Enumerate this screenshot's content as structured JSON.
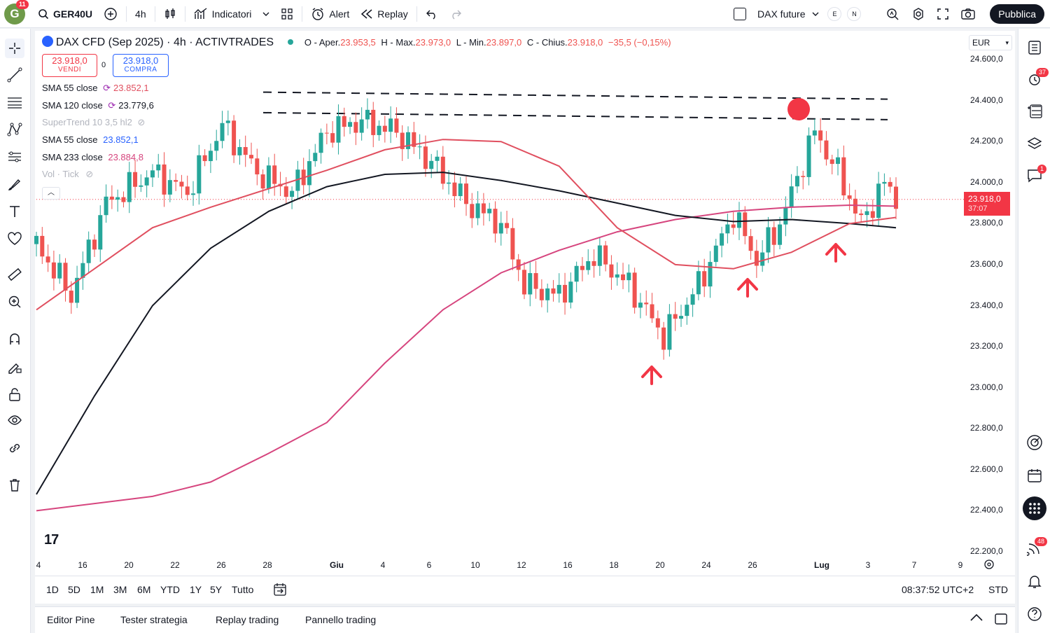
{
  "toolbar": {
    "avatar_letter": "G",
    "avatar_badge": "11",
    "symbol": "GER40U",
    "interval": "4h",
    "indicators": "Indicatori",
    "alert": "Alert",
    "replay": "Replay",
    "compare_symbol": "DAX future",
    "e_label": "E",
    "n_label": "N",
    "publish": "Pubblica"
  },
  "legend": {
    "title": "DAX CFD (Sep 2025) · 4h · ACTIVTRADES",
    "o_label": "O - Aper.",
    "o_val": "23.953,5",
    "h_label": "H - Max.",
    "h_val": "23.973,0",
    "l_label": "L - Min.",
    "l_val": "23.897,0",
    "c_label": "C - Chius.",
    "c_val": "23.918,0",
    "change": "−35,5 (−0,15%)",
    "sell_price": "23.918,0",
    "sell_label": "VENDI",
    "spread": "0",
    "buy_price": "23.918,0",
    "buy_label": "COMPRA"
  },
  "indicators": [
    {
      "name": "SMA 55 close",
      "value": "23.852,1",
      "color": "#e04f5f"
    },
    {
      "name": "SMA 120 close",
      "value": "23.779,6",
      "color": "#131722"
    },
    {
      "name": "SuperTrend 10 3,5 hl2",
      "value": "",
      "color": "#b2b5be"
    },
    {
      "name": "SMA 55 close",
      "value": "23.852,1",
      "color": "#2962ff"
    },
    {
      "name": "SMA 233 close",
      "value": "23.884,8",
      "color": "#d6457e"
    },
    {
      "name": "Vol · Tick",
      "value": "",
      "color": "#b2b5be"
    }
  ],
  "currency": "EUR",
  "price_label": {
    "value": "23.918,0",
    "countdown": "37:07"
  },
  "y_axis": [
    "24.600,0",
    "24.400,0",
    "24.200,0",
    "24.000,0",
    "23.800,0",
    "23.600,0",
    "23.400,0",
    "23.200,0",
    "23.000,0",
    "22.800,0",
    "22.600,0",
    "22.400,0",
    "22.200,0"
  ],
  "x_axis": [
    "4",
    "16",
    "20",
    "22",
    "26",
    "28",
    "Giu",
    "4",
    "6",
    "10",
    "12",
    "16",
    "18",
    "20",
    "24",
    "26",
    "Lug",
    "3",
    "7",
    "9"
  ],
  "ranges": [
    "1D",
    "5D",
    "1M",
    "3M",
    "6M",
    "YTD",
    "1Y",
    "5Y",
    "Tutto"
  ],
  "clock": "08:37:52 UTC+2",
  "session": "STD",
  "bottom_tabs": [
    "Editor Pine",
    "Tester strategia",
    "Replay trading",
    "Pannello trading"
  ],
  "right_badges": {
    "alerts": "37",
    "chat": "1",
    "notifications": "48"
  },
  "colors": {
    "up": "#26a69a",
    "down": "#ef5350",
    "sma55": "#e04f5f",
    "sma120": "#131722",
    "sma233": "#d6457e",
    "arrow": "#f23645"
  },
  "chart_data": {
    "type": "candlestick",
    "title": "DAX CFD (Sep 2025) · 4h · ACTIVTRADES",
    "ylim": [
      22200,
      24600
    ],
    "last_price": 23918,
    "resistance_levels": [
      24400,
      24300
    ],
    "sma55": [
      [
        0,
        23380
      ],
      [
        5,
        23580
      ],
      [
        10,
        23780
      ],
      [
        15,
        23880
      ],
      [
        20,
        23970
      ],
      [
        25,
        24060
      ],
      [
        30,
        24160
      ],
      [
        35,
        24210
      ],
      [
        40,
        24200
      ],
      [
        45,
        24080
      ],
      [
        50,
        23780
      ],
      [
        55,
        23600
      ],
      [
        60,
        23580
      ],
      [
        65,
        23660
      ],
      [
        70,
        23800
      ],
      [
        74,
        23830
      ]
    ],
    "sma120": [
      [
        0,
        22480
      ],
      [
        5,
        22960
      ],
      [
        10,
        23400
      ],
      [
        15,
        23680
      ],
      [
        20,
        23860
      ],
      [
        25,
        23980
      ],
      [
        30,
        24040
      ],
      [
        35,
        24050
      ],
      [
        40,
        24010
      ],
      [
        45,
        23960
      ],
      [
        50,
        23900
      ],
      [
        55,
        23840
      ],
      [
        60,
        23810
      ],
      [
        65,
        23820
      ],
      [
        70,
        23800
      ],
      [
        74,
        23780
      ]
    ],
    "sma233": [
      [
        0,
        22400
      ],
      [
        10,
        22470
      ],
      [
        15,
        22540
      ],
      [
        20,
        22680
      ],
      [
        25,
        22830
      ],
      [
        30,
        23120
      ],
      [
        35,
        23380
      ],
      [
        40,
        23560
      ],
      [
        45,
        23670
      ],
      [
        50,
        23760
      ],
      [
        55,
        23820
      ],
      [
        60,
        23860
      ],
      [
        65,
        23880
      ],
      [
        70,
        23890
      ],
      [
        74,
        23885
      ]
    ],
    "markers": [
      {
        "type": "arrow-up",
        "near": 23100
      },
      {
        "type": "arrow-up",
        "near": 23400
      },
      {
        "type": "arrow-up",
        "near": 23660
      },
      {
        "type": "dot",
        "near": 24350
      }
    ]
  }
}
